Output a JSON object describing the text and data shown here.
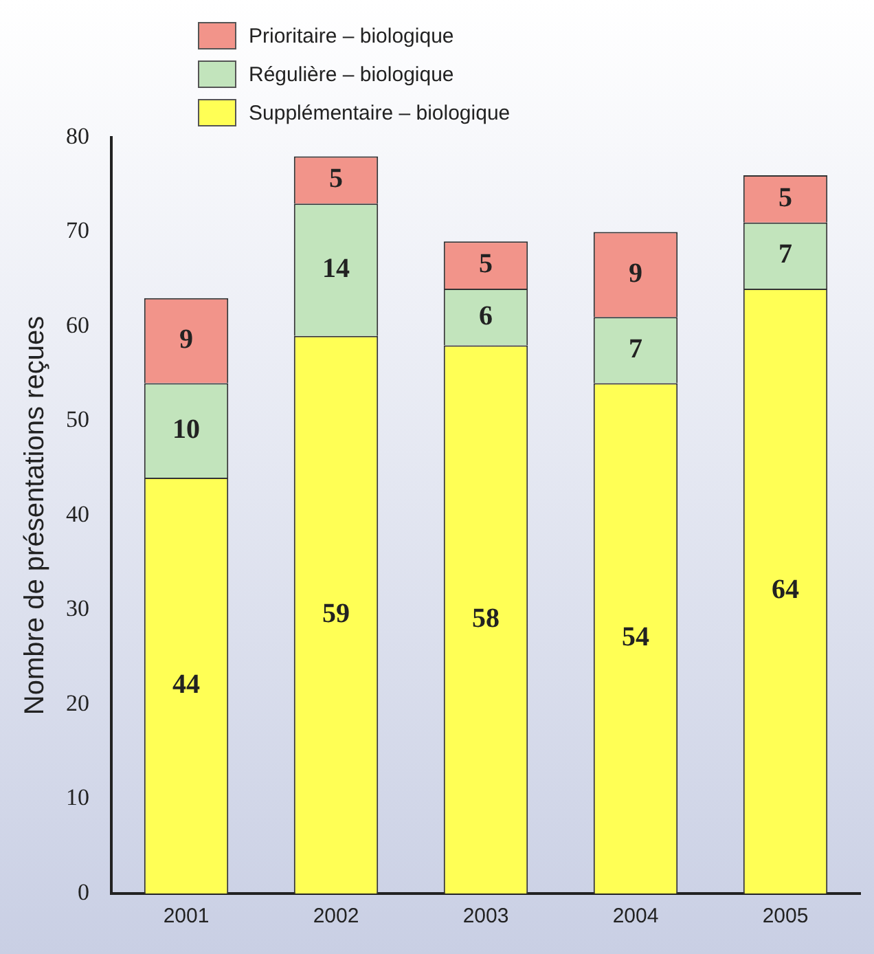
{
  "chart_data": {
    "type": "bar",
    "stacked": true,
    "ylabel": "Nombre de présentations reçues",
    "categories": [
      "2001",
      "2002",
      "2003",
      "2004",
      "2005"
    ],
    "series": [
      {
        "name": "Supplémentaire – biologique",
        "color": "#ffff55",
        "values": [
          44,
          59,
          58,
          54,
          64
        ]
      },
      {
        "name": "Régulière – biologique",
        "color": "#c2e4bc",
        "values": [
          10,
          14,
          6,
          7,
          7
        ]
      },
      {
        "name": "Prioritaire – biologique",
        "color": "#f2948a",
        "values": [
          9,
          5,
          5,
          9,
          5
        ]
      }
    ],
    "ylim": [
      0,
      80
    ],
    "yticks": [
      0,
      10,
      20,
      30,
      40,
      50,
      60,
      70,
      80
    ],
    "grid": false,
    "legend": "top",
    "data_labels": true
  }
}
